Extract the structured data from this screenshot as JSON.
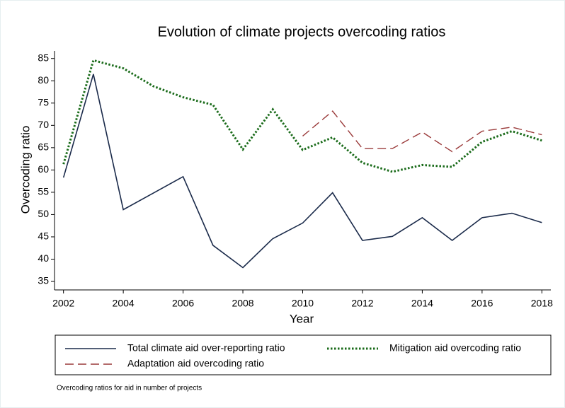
{
  "chart_data": {
    "type": "line",
    "title": "Evolution of climate projects overcoding ratios",
    "xlabel": "Year",
    "ylabel": "Overcoding ratio",
    "note": "Overcoding ratios for aid in number of projects",
    "x": [
      2002,
      2003,
      2004,
      2005,
      2006,
      2007,
      2008,
      2009,
      2010,
      2011,
      2012,
      2013,
      2014,
      2015,
      2016,
      2017,
      2018
    ],
    "series": [
      {
        "name": "Total climate aid over-reporting ratio",
        "color": "#1a2a4a",
        "dash": "solid",
        "values": [
          58.3,
          81.5,
          51.1,
          54.8,
          58.5,
          43.1,
          38.1,
          44.6,
          48.1,
          54.9,
          44.2,
          45.1,
          49.3,
          44.2,
          49.3,
          50.3,
          48.2
        ]
      },
      {
        "name": "Mitigation aid overcoding ratio",
        "color": "#1a6b1a",
        "dash": "dotted",
        "values": [
          61.3,
          84.6,
          82.8,
          78.8,
          76.3,
          74.6,
          64.6,
          73.6,
          64.5,
          67.3,
          61.6,
          59.6,
          61.1,
          60.7,
          66.3,
          68.7,
          66.6
        ]
      },
      {
        "name": "Adaptation aid overcoding ratio",
        "color": "#9a3a3a",
        "dash": "dashed",
        "values": [
          null,
          null,
          null,
          null,
          null,
          null,
          null,
          null,
          67.6,
          73.2,
          64.8,
          64.8,
          68.5,
          64.1,
          68.7,
          69.6,
          67.9
        ]
      }
    ],
    "xlim": [
      2001.7,
      2018.3
    ],
    "ylim": [
      33.1,
      86.7
    ],
    "xticks": [
      2002,
      2004,
      2006,
      2008,
      2010,
      2012,
      2014,
      2016,
      2018
    ],
    "yticks": [
      35,
      40,
      45,
      50,
      55,
      60,
      65,
      70,
      75,
      80,
      85
    ],
    "grid": false,
    "legend": "bottom"
  }
}
